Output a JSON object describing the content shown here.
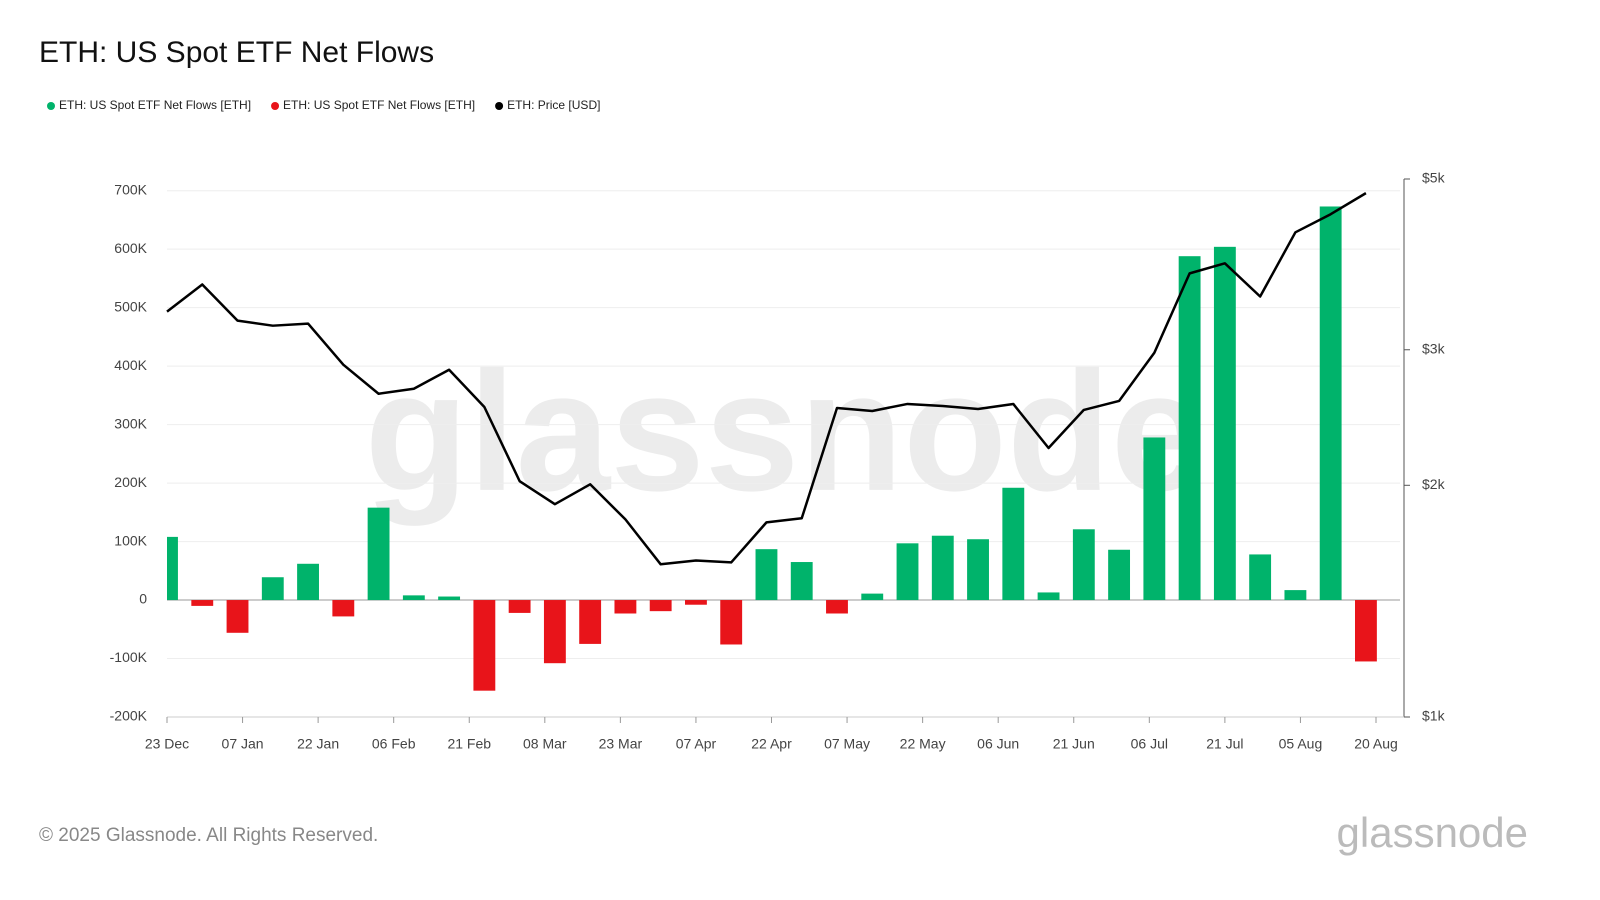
{
  "chart_data": {
    "type": "bar",
    "title": "ETH: US Spot ETF Net Flows",
    "watermark": "glassnode",
    "footer": "© 2025 Glassnode. All Rights Reserved.",
    "logo": "glassnode",
    "x": [
      0,
      7,
      14,
      21,
      28,
      35,
      42,
      49,
      56,
      63,
      70,
      77,
      84,
      91,
      98,
      105,
      112,
      119,
      126,
      133,
      140,
      147,
      154,
      161,
      168,
      175,
      182,
      189,
      196,
      203,
      210,
      217,
      224,
      231,
      238
    ],
    "xlim": [
      0,
      240
    ],
    "xticks": [
      {
        "value": 0,
        "label": "23 Dec"
      },
      {
        "value": 15,
        "label": "07 Jan"
      },
      {
        "value": 30,
        "label": "22 Jan"
      },
      {
        "value": 45,
        "label": "06 Feb"
      },
      {
        "value": 60,
        "label": "21 Feb"
      },
      {
        "value": 75,
        "label": "08 Mar"
      },
      {
        "value": 90,
        "label": "23 Mar"
      },
      {
        "value": 105,
        "label": "07 Apr"
      },
      {
        "value": 120,
        "label": "22 Apr"
      },
      {
        "value": 135,
        "label": "07 May"
      },
      {
        "value": 150,
        "label": "22 May"
      },
      {
        "value": 165,
        "label": "06 Jun"
      },
      {
        "value": 180,
        "label": "21 Jun"
      },
      {
        "value": 195,
        "label": "06 Jul"
      },
      {
        "value": 210,
        "label": "21 Jul"
      },
      {
        "value": 225,
        "label": "05 Aug"
      },
      {
        "value": 240,
        "label": "20 Aug"
      }
    ],
    "ylim": [
      -200000,
      720000
    ],
    "yticks": [
      {
        "value": -200000,
        "label": "-200K"
      },
      {
        "value": -100000,
        "label": "-100K"
      },
      0,
      {
        "value": 100000,
        "label": "100K"
      },
      {
        "value": 200000,
        "label": "200K"
      },
      {
        "value": 300000,
        "label": "300K"
      },
      {
        "value": 400000,
        "label": "400K"
      },
      {
        "value": 500000,
        "label": "500K"
      },
      {
        "value": 600000,
        "label": "600K"
      },
      {
        "value": 700000,
        "label": "700K"
      }
    ],
    "y2lim": [
      1000,
      5000
    ],
    "y2_log": true,
    "y2ticks": [
      {
        "value": 1000,
        "label": "$1k"
      },
      {
        "value": 2000,
        "label": "$2k"
      },
      {
        "value": 3000,
        "label": "$3k"
      },
      {
        "value": 5000,
        "label": "$5k"
      }
    ],
    "grid": true,
    "legend": "top-left",
    "series": [
      {
        "name": "ETH: US Spot ETF Net Flows [ETH]",
        "color": "#00b36b",
        "type": "bar",
        "values": [
          108000,
          null,
          null,
          39000,
          62000,
          null,
          158000,
          8000,
          6000,
          null,
          null,
          null,
          null,
          null,
          null,
          null,
          null,
          87000,
          65000,
          null,
          11000,
          97000,
          110000,
          104000,
          192000,
          13000,
          121000,
          86000,
          278000,
          588000,
          604000,
          78000,
          17000,
          673000,
          null
        ]
      },
      {
        "name": "ETH: US Spot ETF Net Flows [ETH]",
        "color": "#e8141a",
        "type": "bar",
        "values": [
          null,
          -10000,
          -56000,
          null,
          null,
          -28000,
          null,
          null,
          null,
          -155000,
          -22000,
          -108000,
          -75000,
          -23000,
          -19000,
          -8000,
          -76000,
          null,
          null,
          -23000,
          null,
          null,
          null,
          null,
          null,
          null,
          null,
          null,
          null,
          null,
          null,
          null,
          null,
          null,
          -105000
        ]
      },
      {
        "name": "ETH: Price [USD]",
        "color": "#000000",
        "type": "line",
        "axis": "y2",
        "values": [
          3363,
          3647,
          3273,
          3224,
          3244,
          2869,
          2630,
          2670,
          2826,
          2528,
          2025,
          1890,
          2006,
          1806,
          1579,
          1597,
          1588,
          1790,
          1812,
          2520,
          2498,
          2551,
          2535,
          2513,
          2551,
          2236,
          2506,
          2574,
          2973,
          3770,
          3885,
          3518,
          4263,
          4500,
          4793
        ]
      }
    ]
  }
}
